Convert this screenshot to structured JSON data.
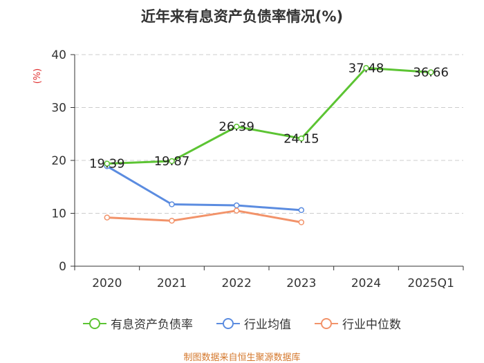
{
  "chart_data": {
    "type": "line",
    "title": "近年来有息资产负债率情况(%)",
    "ylabel": "(%)",
    "xlabel": "",
    "categories": [
      "2020",
      "2021",
      "2022",
      "2023",
      "2024",
      "2025Q1"
    ],
    "ylim": [
      0,
      40
    ],
    "yticks": [
      0,
      10,
      20,
      30,
      40
    ],
    "grid": true,
    "legend_position": "bottom",
    "series": [
      {
        "name": "有息资产负债率",
        "color": "#5cc433",
        "values": [
          19.39,
          19.87,
          26.39,
          24.15,
          37.48,
          36.66
        ],
        "labels": [
          "19.39",
          "19.87",
          "26.39",
          "24.15",
          "37.48",
          "36.66"
        ]
      },
      {
        "name": "行业均值",
        "color": "#5b8ce0",
        "values": [
          18.9,
          11.7,
          11.5,
          10.6,
          null,
          null
        ]
      },
      {
        "name": "行业中位数",
        "color": "#f2936a",
        "values": [
          9.2,
          8.6,
          10.5,
          8.3,
          null,
          null
        ]
      }
    ]
  },
  "source": "制图数据来自恒生聚源数据库"
}
